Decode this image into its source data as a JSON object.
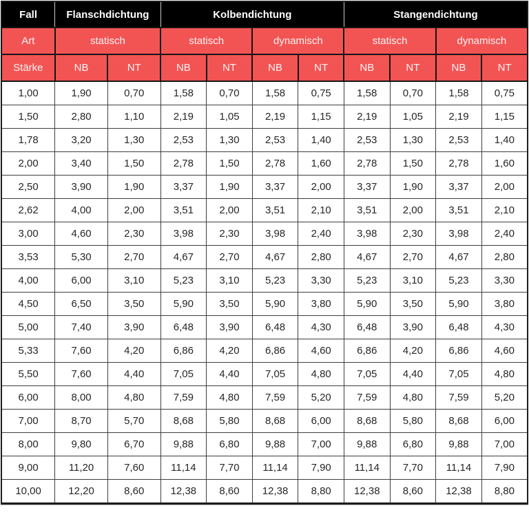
{
  "table": {
    "header": {
      "row1": [
        {
          "label": "Fall",
          "colspan": 1
        },
        {
          "label": "Flanschdichtung",
          "colspan": 2
        },
        {
          "label": "Kolbendichtung",
          "colspan": 4
        },
        {
          "label": "Stangendichtung",
          "colspan": 4
        }
      ],
      "row2": [
        {
          "label": "Art",
          "colspan": 1
        },
        {
          "label": "statisch",
          "colspan": 2
        },
        {
          "label": "statisch",
          "colspan": 2
        },
        {
          "label": "dynamisch",
          "colspan": 2
        },
        {
          "label": "statisch",
          "colspan": 2
        },
        {
          "label": "dynamisch",
          "colspan": 2
        }
      ],
      "row3": [
        "Stärke",
        "NB",
        "NT",
        "NB",
        "NT",
        "NB",
        "NT",
        "NB",
        "NT",
        "NB",
        "NT"
      ]
    },
    "rows": [
      [
        "1,00",
        "1,90",
        "0,70",
        "1,58",
        "0,70",
        "1,58",
        "0,75",
        "1,58",
        "0,70",
        "1,58",
        "0,75"
      ],
      [
        "1,50",
        "2,80",
        "1,10",
        "2,19",
        "1,05",
        "2,19",
        "1,15",
        "2,19",
        "1,05",
        "2,19",
        "1,15"
      ],
      [
        "1,78",
        "3,20",
        "1,30",
        "2,53",
        "1,30",
        "2,53",
        "1,40",
        "2,53",
        "1,30",
        "2,53",
        "1,40"
      ],
      [
        "2,00",
        "3,40",
        "1,50",
        "2,78",
        "1,50",
        "2,78",
        "1,60",
        "2,78",
        "1,50",
        "2,78",
        "1,60"
      ],
      [
        "2,50",
        "3,90",
        "1,90",
        "3,37",
        "1,90",
        "3,37",
        "2,00",
        "3,37",
        "1,90",
        "3,37",
        "2,00"
      ],
      [
        "2,62",
        "4,00",
        "2,00",
        "3,51",
        "2,00",
        "3,51",
        "2,10",
        "3,51",
        "2,00",
        "3,51",
        "2,10"
      ],
      [
        "3,00",
        "4,60",
        "2,30",
        "3,98",
        "2,30",
        "3,98",
        "2,40",
        "3,98",
        "2,30",
        "3,98",
        "2,40"
      ],
      [
        "3,53",
        "5,30",
        "2,70",
        "4,67",
        "2,70",
        "4,67",
        "2,80",
        "4,67",
        "2,70",
        "4,67",
        "2,80"
      ],
      [
        "4,00",
        "6,00",
        "3,10",
        "5,23",
        "3,10",
        "5,23",
        "3,30",
        "5,23",
        "3,10",
        "5,23",
        "3,30"
      ],
      [
        "4,50",
        "6,50",
        "3,50",
        "5,90",
        "3,50",
        "5,90",
        "3,80",
        "5,90",
        "3,50",
        "5,90",
        "3,80"
      ],
      [
        "5,00",
        "7,40",
        "3,90",
        "6,48",
        "3,90",
        "6,48",
        "4,30",
        "6,48",
        "3,90",
        "6,48",
        "4,30"
      ],
      [
        "5,33",
        "7,60",
        "4,20",
        "6,86",
        "4,20",
        "6,86",
        "4,60",
        "6,86",
        "4,20",
        "6,86",
        "4,60"
      ],
      [
        "5,50",
        "7,60",
        "4,40",
        "7,05",
        "4,40",
        "7,05",
        "4,80",
        "7,05",
        "4,40",
        "7,05",
        "4,80"
      ],
      [
        "6,00",
        "8,00",
        "4,80",
        "7,59",
        "4,80",
        "7,59",
        "5,20",
        "7,59",
        "4,80",
        "7,59",
        "5,20"
      ],
      [
        "7,00",
        "8,70",
        "5,70",
        "8,68",
        "5,80",
        "8,68",
        "6,00",
        "8,68",
        "5,80",
        "8,68",
        "6,00"
      ],
      [
        "8,00",
        "9,80",
        "6,70",
        "9,88",
        "6,80",
        "9,88",
        "7,00",
        "9,88",
        "6,80",
        "9,88",
        "7,00"
      ],
      [
        "9,00",
        "11,20",
        "7,60",
        "11,14",
        "7,70",
        "11,14",
        "7,90",
        "11,14",
        "7,70",
        "11,14",
        "7,90"
      ],
      [
        "10,00",
        "12,20",
        "8,60",
        "12,38",
        "8,60",
        "12,38",
        "8,80",
        "12,38",
        "8,60",
        "12,38",
        "8,80"
      ]
    ],
    "colors": {
      "group_header_bg": "#000000",
      "group_header_text": "#ffffff",
      "sub_header_bg": "#f25454",
      "sub_header_text": "#fdf2f2",
      "grid_line": "#3d3d3d",
      "data_text": "#262626"
    }
  }
}
